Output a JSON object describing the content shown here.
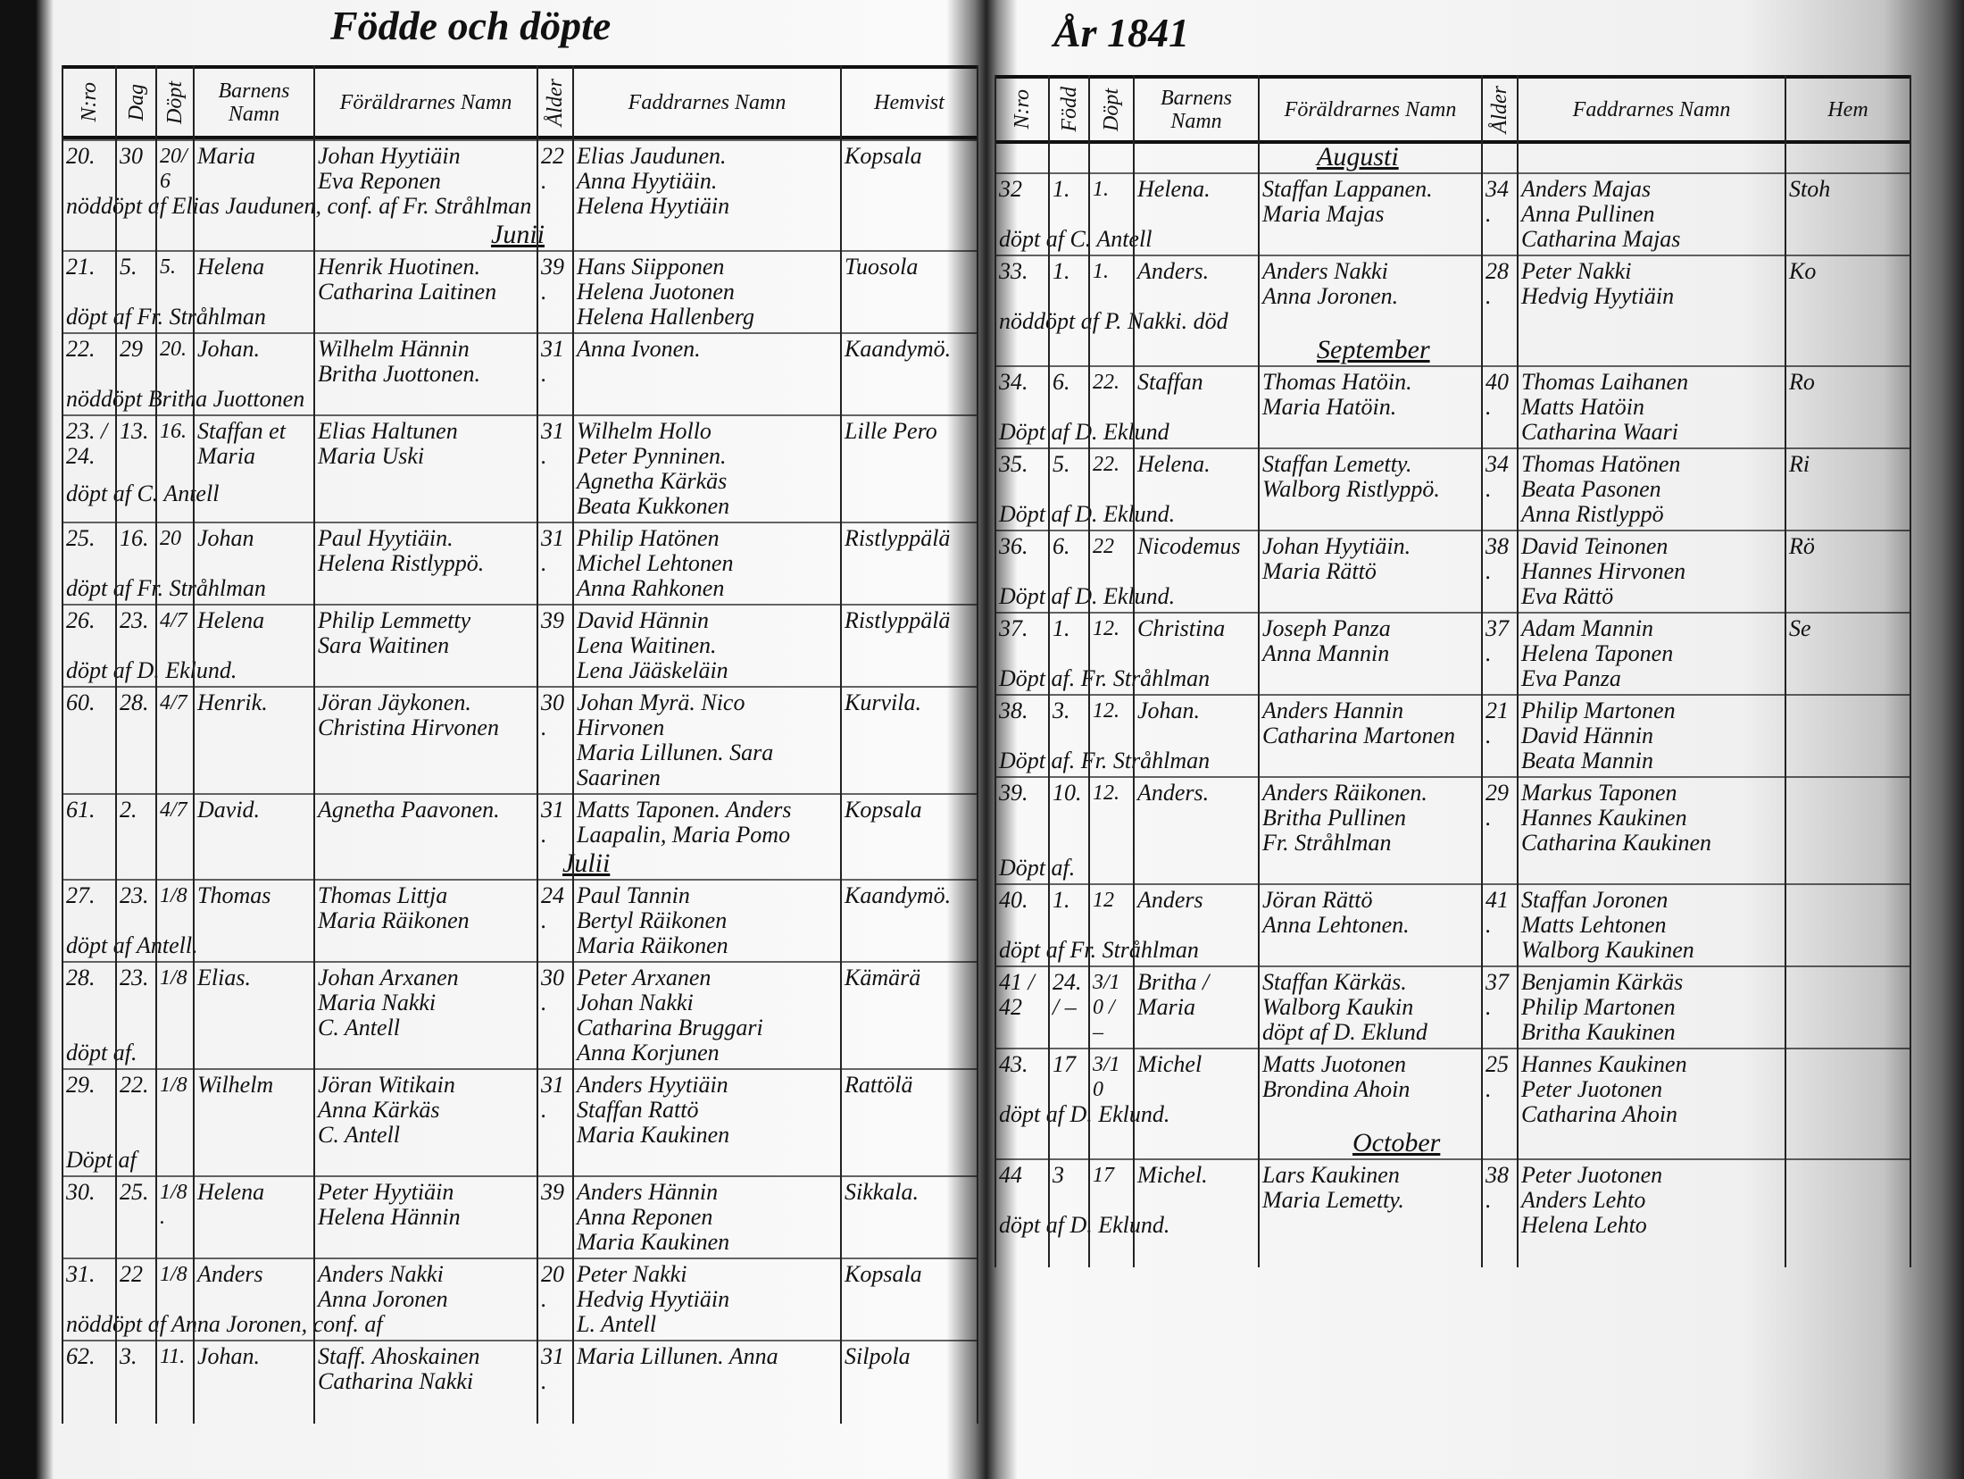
{
  "header": {
    "title_left": "Födde och döpte",
    "title_right": "År 1841"
  },
  "columns_left": [
    "N:ro",
    "Dag",
    "Döpt",
    "Barnens Namn",
    "Föräldrarnes Namn",
    "Ålder",
    "Faddrarnes Namn",
    "Hemvist"
  ],
  "columns_right": [
    "N:ro",
    "Född",
    "Döpt",
    "Barnens Namn",
    "Föräldrarnes Namn",
    "Ålder",
    "Faddrarnes Namn",
    "Hem"
  ],
  "left_months": [
    "Junii",
    "Julii"
  ],
  "right_months": [
    "Augusti",
    "September",
    "October"
  ],
  "left_rows": [
    {
      "no": "20.",
      "born": "30",
      "baptized": "20/6",
      "child": "Maria",
      "parents": [
        "Johan Hyytiäin",
        "Eva Reponen"
      ],
      "age": "22.",
      "sponsors": [
        "Elias Jaudunen.",
        "Anna Hyytiäin.",
        "Helena Hyytiäin"
      ],
      "home": "Kopsala",
      "note": "nöddöpt af Elias Jaudunen, conf. af Fr. Stråhlman"
    },
    {
      "no": "21.",
      "born": "5.",
      "baptized": "5.",
      "child": "Helena",
      "parents": [
        "Henrik Huotinen.",
        "Catharina Laitinen"
      ],
      "age": "39.",
      "sponsors": [
        "Hans Siipponen",
        "Helena Juotonen",
        "Helena Hallenberg"
      ],
      "home": "Tuosola",
      "note": "döpt af Fr. Stråhlman"
    },
    {
      "no": "22.",
      "born": "29",
      "baptized": "20.",
      "child": "Johan.",
      "parents": [
        "Wilhelm Hännin",
        "Britha Juottonen."
      ],
      "age": "31.",
      "sponsors": [
        "Anna Ivonen."
      ],
      "home": "Kaandymö.",
      "note": "nöddöpt   Britha Juottonen"
    },
    {
      "no": "23. / 24.",
      "born": "13.",
      "baptized": "16.",
      "child": "Staffan et Maria",
      "parents": [
        "Elias Haltunen",
        "Maria Uski"
      ],
      "age": "31.",
      "sponsors": [
        "Wilhelm Hollo",
        "Peter Pynninen.",
        "Agnetha Kärkäs",
        "Beata Kukkonen"
      ],
      "home": "Lille Pero",
      "note": "döpt af C. Antell"
    },
    {
      "no": "25.",
      "born": "16.",
      "baptized": "20",
      "child": "Johan",
      "parents": [
        "Paul Hyytiäin.",
        "Helena Ristlyppö."
      ],
      "age": "31.",
      "sponsors": [
        "Philip Hatönen",
        "Michel Lehtonen",
        "Anna Rahkonen"
      ],
      "home": "Ristlyppälä",
      "note": "döpt af Fr. Stråhlman"
    },
    {
      "no": "26.",
      "born": "23.",
      "baptized": "4/7",
      "child": "Helena",
      "parents": [
        "Philip Lemmetty",
        "Sara Waitinen"
      ],
      "age": "39",
      "sponsors": [
        "David Hännin",
        "Lena Waitinen.",
        "Lena Jääskeläin"
      ],
      "home": "Ristlyppälä",
      "note": "döpt af D. Eklund."
    },
    {
      "no": "60.",
      "born": "28.",
      "baptized": "4/7",
      "child": "Henrik.",
      "parents": [
        "Jöran Jäykonen.",
        "Christina Hirvonen"
      ],
      "age": "30.",
      "sponsors": [
        "Johan Myrä. Nico Hirvonen",
        "Maria Lillunen. Sara Saarinen"
      ],
      "home": "Kurvila.",
      "note": ""
    },
    {
      "no": "61.",
      "born": "2.",
      "baptized": "4/7",
      "child": "David.",
      "parents": [
        "Agnetha Paavonen."
      ],
      "age": "31.",
      "sponsors": [
        "Matts Taponen. Anders",
        "Laapalin, Maria Pomo"
      ],
      "home": "Kopsala",
      "note": ""
    },
    {
      "no": "27.",
      "born": "23.",
      "baptized": "1/8",
      "child": "Thomas",
      "parents": [
        "Thomas Littja",
        "Maria Räikonen"
      ],
      "age": "24.",
      "sponsors": [
        "Paul Tannin",
        "Bertyl Räikonen",
        "Maria Räikonen"
      ],
      "home": "Kaandymö.",
      "note": "döpt af Antell."
    },
    {
      "no": "28.",
      "born": "23.",
      "baptized": "1/8",
      "child": "Elias.",
      "parents": [
        "Johan Arxanen",
        "Maria Nakki",
        "C. Antell"
      ],
      "age": "30.",
      "sponsors": [
        "Peter Arxanen",
        "Johan Nakki",
        "Catharina Bruggari",
        "Anna Korjunen"
      ],
      "home": "Kämärä",
      "note": "döpt af."
    },
    {
      "no": "29.",
      "born": "22.",
      "baptized": "1/8",
      "child": "Wilhelm",
      "parents": [
        "Jöran Witikain",
        "Anna Kärkäs",
        "C. Antell"
      ],
      "age": "31.",
      "sponsors": [
        "Anders Hyytiäin",
        "Staffan Rattö",
        "Maria Kaukinen"
      ],
      "home": "Rattölä",
      "note": "Döpt af"
    },
    {
      "no": "30.",
      "born": "25.",
      "baptized": "1/8.",
      "child": "Helena",
      "parents": [
        "Peter Hyytiäin",
        "Helena Hännin"
      ],
      "age": "39",
      "sponsors": [
        "Anders Hännin",
        "Anna Reponen",
        "Maria Kaukinen"
      ],
      "home": "Sikkala.",
      "note": ""
    },
    {
      "no": "31.",
      "born": "22",
      "baptized": "1/8",
      "child": "Anders",
      "parents": [
        "Anders Nakki",
        "Anna Joronen"
      ],
      "age": "20.",
      "sponsors": [
        "Peter Nakki",
        "Hedvig Hyytiäin",
        "L. Antell"
      ],
      "home": "Kopsala",
      "note": "nöddöpt af Anna Joronen, conf. af"
    },
    {
      "no": "62.",
      "born": "3.",
      "baptized": "11.",
      "child": "Johan.",
      "parents": [
        "Staff. Ahoskainen",
        "Catharina Nakki"
      ],
      "age": "31.",
      "sponsors": [
        "Maria Lillunen. Anna"
      ],
      "home": "Silpola",
      "note": ""
    }
  ],
  "right_rows": [
    {
      "no": "32",
      "born": "1.",
      "baptized": "1.",
      "child": "Helena.",
      "parents": [
        "Staffan Lappanen.",
        "Maria Majas"
      ],
      "age": "34.",
      "sponsors": [
        "Anders Majas",
        "Anna Pullinen",
        "Catharina Majas"
      ],
      "home": "Stoh",
      "note": "döpt af C. Antell"
    },
    {
      "no": "33.",
      "born": "1.",
      "baptized": "1.",
      "child": "Anders.",
      "parents": [
        "Anders Nakki",
        "Anna Joronen."
      ],
      "age": "28.",
      "sponsors": [
        "Peter Nakki",
        "Hedvig Hyytiäin"
      ],
      "home": "Ko",
      "note": "nöddöpt af P. Nakki. död"
    },
    {
      "no": "34.",
      "born": "6.",
      "baptized": "22.",
      "child": "Staffan",
      "parents": [
        "Thomas Hatöin.",
        "Maria Hatöin."
      ],
      "age": "40.",
      "sponsors": [
        "Thomas Laihanen",
        "Matts Hatöin",
        "Catharina Waari"
      ],
      "home": "Ro",
      "note": "Döpt af D. Eklund"
    },
    {
      "no": "35.",
      "born": "5.",
      "baptized": "22.",
      "child": "Helena.",
      "parents": [
        "Staffan Lemetty.",
        "Walborg Ristlyppö."
      ],
      "age": "34.",
      "sponsors": [
        "Thomas Hatönen",
        "Beata Pasonen",
        "Anna Ristlyppö"
      ],
      "home": "Ri",
      "note": "Döpt af D. Eklund."
    },
    {
      "no": "36.",
      "born": "6.",
      "baptized": "22",
      "child": "Nicodemus",
      "parents": [
        "Johan Hyytiäin.",
        "Maria Rättö"
      ],
      "age": "38.",
      "sponsors": [
        "David Teinonen",
        "Hannes Hirvonen",
        "Eva Rättö"
      ],
      "home": "Rö",
      "note": "Döpt af D. Eklund."
    },
    {
      "no": "37.",
      "born": "1.",
      "baptized": "12.",
      "child": "Christina",
      "parents": [
        "Joseph Panza",
        "Anna Mannin"
      ],
      "age": "37.",
      "sponsors": [
        "Adam Mannin",
        "Helena Taponen",
        "Eva Panza"
      ],
      "home": "Se",
      "note": "Döpt af. Fr. Stråhlman"
    },
    {
      "no": "38.",
      "born": "3.",
      "baptized": "12.",
      "child": "Johan.",
      "parents": [
        "Anders Hannin",
        "Catharina Martonen"
      ],
      "age": "21.",
      "sponsors": [
        "Philip Martonen",
        "David Hännin",
        "Beata Mannin"
      ],
      "home": "",
      "note": "Döpt af. Fr. Stråhlman"
    },
    {
      "no": "39.",
      "born": "10.",
      "baptized": "12.",
      "child": "Anders.",
      "parents": [
        "Anders Räikonen.",
        "Britha Pullinen",
        "Fr. Stråhlman"
      ],
      "age": "29.",
      "sponsors": [
        "Markus Taponen",
        "Hannes Kaukinen",
        "Catharina Kaukinen"
      ],
      "home": "",
      "note": "Döpt af."
    },
    {
      "no": "40.",
      "born": "1.",
      "baptized": "12",
      "child": "Anders",
      "parents": [
        "Jöran Rättö",
        "Anna Lehtonen."
      ],
      "age": "41.",
      "sponsors": [
        "Staffan Joronen",
        "Matts Lehtonen",
        "Walborg Kaukinen"
      ],
      "home": "",
      "note": "döpt af Fr. Stråhlman"
    },
    {
      "no": "41 / 42",
      "born": "24. / –",
      "baptized": "3/10 / –",
      "child": "Britha / Maria",
      "parents": [
        "Staffan Kärkäs.",
        "Walborg Kaukin",
        "döpt af D. Eklund"
      ],
      "age": "37.",
      "sponsors": [
        "Benjamin Kärkäs",
        "Philip Martonen",
        "Britha Kaukinen"
      ],
      "home": "",
      "note": ""
    },
    {
      "no": "43.",
      "born": "17",
      "baptized": "3/10",
      "child": "Michel",
      "parents": [
        "Matts Juotonen",
        "Brondina Ahoin"
      ],
      "age": "25.",
      "sponsors": [
        "Hannes Kaukinen",
        "Peter Juotonen",
        "Catharina Ahoin"
      ],
      "home": "",
      "note": "döpt af D. Eklund."
    },
    {
      "no": "44",
      "born": "3",
      "baptized": "17",
      "child": "Michel.",
      "parents": [
        "Lars Kaukinen",
        "Maria Lemetty."
      ],
      "age": "38.",
      "sponsors": [
        "Peter Juotonen",
        "Anders Lehto",
        "Helena Lehto"
      ],
      "home": "",
      "note": "döpt af D. Eklund."
    }
  ]
}
